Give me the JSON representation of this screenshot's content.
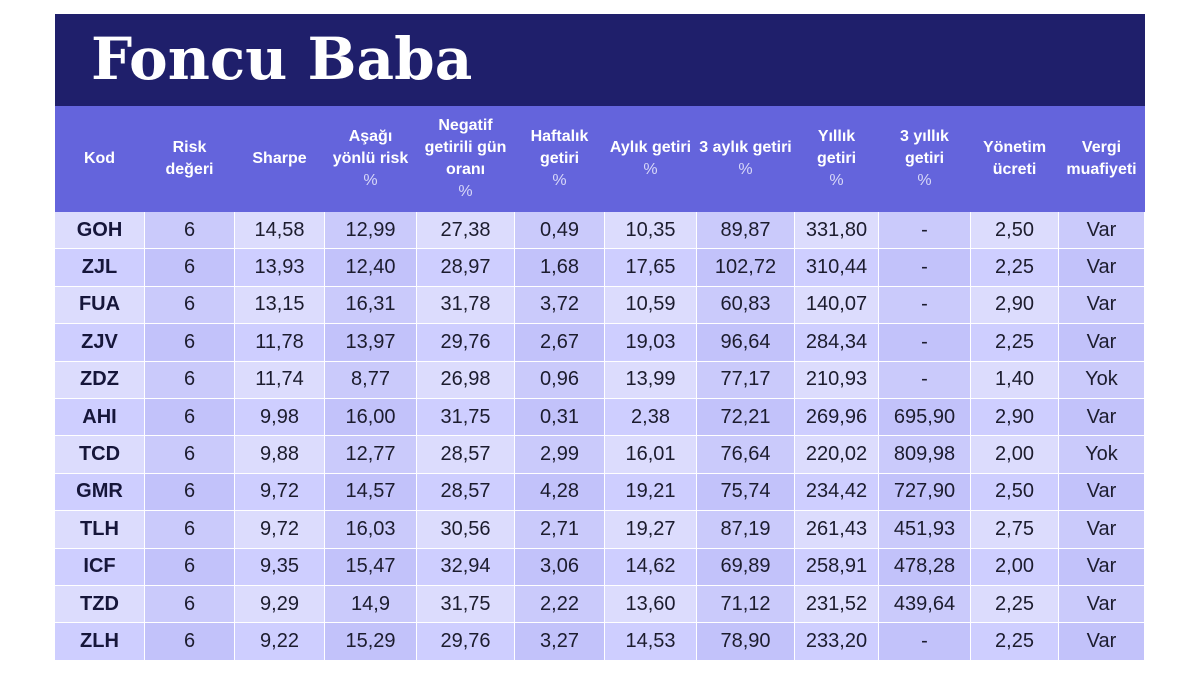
{
  "title": "Foncu Baba",
  "headers": [
    {
      "label": "Kod",
      "unit": ""
    },
    {
      "label": "Risk değeri",
      "unit": ""
    },
    {
      "label": "Sharpe",
      "unit": ""
    },
    {
      "label": "Aşağı yönlü risk",
      "unit": "%"
    },
    {
      "label": "Negatif getirili gün oranı",
      "unit": "%"
    },
    {
      "label": "Haftalık getiri",
      "unit": "%"
    },
    {
      "label": "Aylık getiri",
      "unit": "%"
    },
    {
      "label": "3 aylık getiri",
      "unit": "%"
    },
    {
      "label": "Yıllık getiri",
      "unit": "%"
    },
    {
      "label": "3 yıllık getiri",
      "unit": "%"
    },
    {
      "label": "Yönetim ücreti",
      "unit": ""
    },
    {
      "label": "Vergi muafiyeti",
      "unit": ""
    }
  ],
  "rows": [
    [
      "GOH",
      "6",
      "14,58",
      "12,99",
      "27,38",
      "0,49",
      "10,35",
      "89,87",
      "331,80",
      "-",
      "2,50",
      "Var"
    ],
    [
      "ZJL",
      "6",
      "13,93",
      "12,40",
      "28,97",
      "1,68",
      "17,65",
      "102,72",
      "310,44",
      "-",
      "2,25",
      "Var"
    ],
    [
      "FUA",
      "6",
      "13,15",
      "16,31",
      "31,78",
      "3,72",
      "10,59",
      "60,83",
      "140,07",
      "-",
      "2,90",
      "Var"
    ],
    [
      "ZJV",
      "6",
      "11,78",
      "13,97",
      "29,76",
      "2,67",
      "19,03",
      "96,64",
      "284,34",
      "-",
      "2,25",
      "Var"
    ],
    [
      "ZDZ",
      "6",
      "11,74",
      "8,77",
      "26,98",
      "0,96",
      "13,99",
      "77,17",
      "210,93",
      "-",
      "1,40",
      "Yok"
    ],
    [
      "AHI",
      "6",
      "9,98",
      "16,00",
      "31,75",
      "0,31",
      "2,38",
      "72,21",
      "269,96",
      "695,90",
      "2,90",
      "Var"
    ],
    [
      "TCD",
      "6",
      "9,88",
      "12,77",
      "28,57",
      "2,99",
      "16,01",
      "76,64",
      "220,02",
      "809,98",
      "2,00",
      "Yok"
    ],
    [
      "GMR",
      "6",
      "9,72",
      "14,57",
      "28,57",
      "4,28",
      "19,21",
      "75,74",
      "234,42",
      "727,90",
      "2,50",
      "Var"
    ],
    [
      "TLH",
      "6",
      "9,72",
      "16,03",
      "30,56",
      "2,71",
      "19,27",
      "87,19",
      "261,43",
      "451,93",
      "2,75",
      "Var"
    ],
    [
      "ICF",
      "6",
      "9,35",
      "15,47",
      "32,94",
      "3,06",
      "14,62",
      "69,89",
      "258,91",
      "478,28",
      "2,00",
      "Var"
    ],
    [
      "TZD",
      "6",
      "9,29",
      "14,9",
      "31,75",
      "2,22",
      "13,60",
      "71,12",
      "231,52",
      "439,64",
      "2,25",
      "Var"
    ],
    [
      "ZLH",
      "6",
      "9,22",
      "15,29",
      "29,76",
      "3,27",
      "14,53",
      "78,90",
      "233,20",
      "-",
      "2,25",
      "Var"
    ]
  ]
}
